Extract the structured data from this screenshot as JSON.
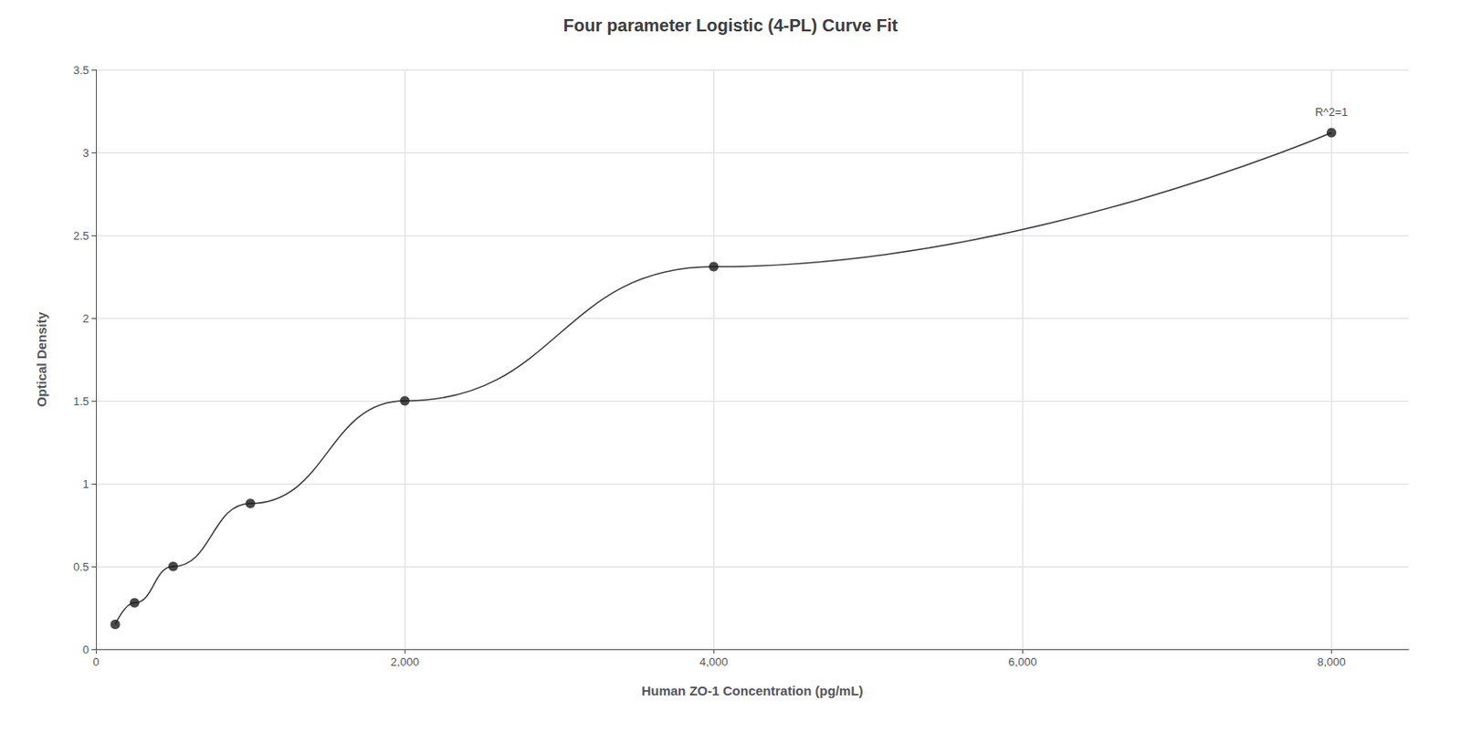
{
  "chart_data": {
    "type": "scatter",
    "title": "Four parameter Logistic (4-PL) Curve Fit",
    "xlabel": "Human ZO-1 Concentration (pg/mL)",
    "ylabel": "Optical Density",
    "annotation": "R^2=1",
    "x": [
      125,
      250,
      500,
      1000,
      2000,
      4000,
      8000
    ],
    "series": [
      {
        "type": "line",
        "color": "#3a3a3a",
        "line_style": "solid",
        "values": [
          0.15,
          0.28,
          0.5,
          0.88,
          1.5,
          2.31,
          3.12
        ]
      },
      {
        "type": "scatter",
        "color": "#1a1a1a",
        "marker": "circle",
        "values": [
          0.15,
          0.28,
          0.5,
          0.88,
          1.5,
          2.31,
          3.12
        ]
      }
    ],
    "xlim": [
      0,
      8500
    ],
    "ylim": [
      0,
      3.5
    ],
    "xticks": [
      0,
      {
        "value": 2000,
        "label": "2,000"
      },
      {
        "value": 4000,
        "label": "4,000"
      },
      {
        "value": 6000,
        "label": "6,000"
      },
      {
        "value": 8000,
        "label": "8,000"
      }
    ],
    "yticks": [
      0,
      0.5,
      1,
      1.5,
      2,
      2.5,
      3,
      3.5
    ],
    "grid": true
  }
}
